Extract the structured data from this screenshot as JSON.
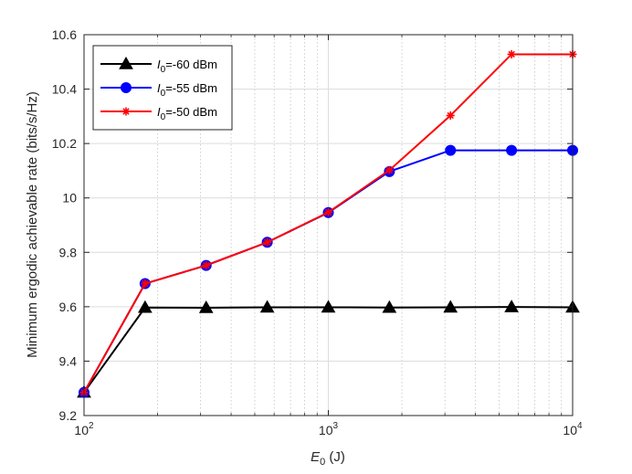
{
  "chart_data": {
    "type": "line",
    "xscale": "log",
    "xlabel": {
      "main": "E",
      "sub": "0",
      "unit": " (J)"
    },
    "ylabel": "Minimum ergodic achievable rate (bits/s/Hz)",
    "xlim": [
      100,
      10000
    ],
    "ylim": [
      9.2,
      10.6
    ],
    "grid": true,
    "legend_position": "top-left",
    "x_ticks": [
      {
        "base": "10",
        "exp": "2",
        "value": 100
      },
      {
        "base": "10",
        "exp": "3",
        "value": 1000
      },
      {
        "base": "10",
        "exp": "4",
        "value": 10000
      }
    ],
    "y_ticks": [
      "9.2",
      "9.4",
      "9.6",
      "9.8",
      "10",
      "10.2",
      "10.4",
      "10.6"
    ],
    "x": [
      100,
      177.8,
      316.2,
      562.3,
      1000,
      1778,
      3162,
      5623,
      10000
    ],
    "series": [
      {
        "name_main": "I",
        "name_sub": "0",
        "name_rest": "=-60 dBm",
        "color": "#000000",
        "marker": "triangle",
        "values": [
          9.285,
          9.597,
          9.596,
          9.598,
          9.598,
          9.597,
          9.598,
          9.599,
          9.598
        ]
      },
      {
        "name_main": "I",
        "name_sub": "0",
        "name_rest": "=-55 dBm",
        "color": "#0000ff",
        "marker": "circle",
        "values": [
          9.285,
          9.685,
          9.752,
          9.837,
          9.946,
          10.097,
          10.175,
          10.175,
          10.175
        ]
      },
      {
        "name_main": "I",
        "name_sub": "0",
        "name_rest": "=-50 dBm",
        "color": "#ff0000",
        "marker": "star",
        "values": [
          9.285,
          9.685,
          9.752,
          9.837,
          9.947,
          10.102,
          10.303,
          10.528,
          10.528
        ]
      }
    ]
  }
}
